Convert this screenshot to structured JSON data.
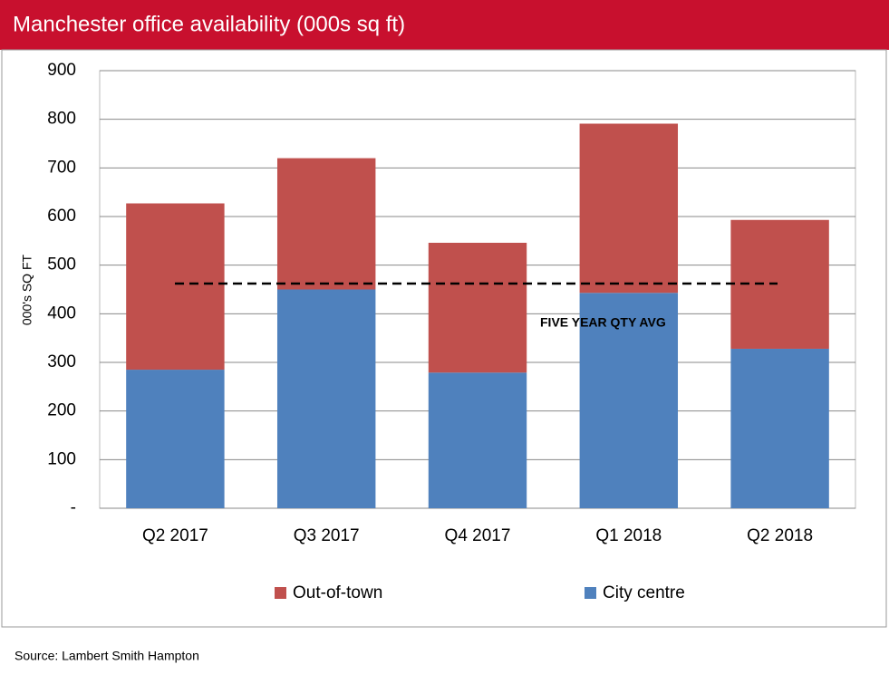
{
  "chart_data": {
    "type": "stacked_bar",
    "title": "Manchester office availability (000s sq ft)",
    "y_label": "000's SQ FT",
    "categories": [
      "Q2 2017",
      "Q3 2017",
      "Q4 2017",
      "Q1 2018",
      "Q2 2018"
    ],
    "series": [
      {
        "name": "Out-of-town",
        "color": "#c0504d",
        "values": [
          342,
          270,
          267,
          348,
          265
        ]
      },
      {
        "name": "City centre",
        "color": "#4f81bd",
        "values": [
          285,
          450,
          279,
          443,
          328
        ]
      }
    ],
    "average_line": {
      "value": 462,
      "label": "FIVE YEAR QTY AVG"
    },
    "ylim": [
      0,
      900
    ],
    "yticks": [
      {
        "value": 0,
        "label": "-"
      },
      100,
      200,
      300,
      400,
      500,
      600,
      700,
      800,
      900
    ],
    "grid": true,
    "source": "Source: Lambert Smith Hampton"
  }
}
